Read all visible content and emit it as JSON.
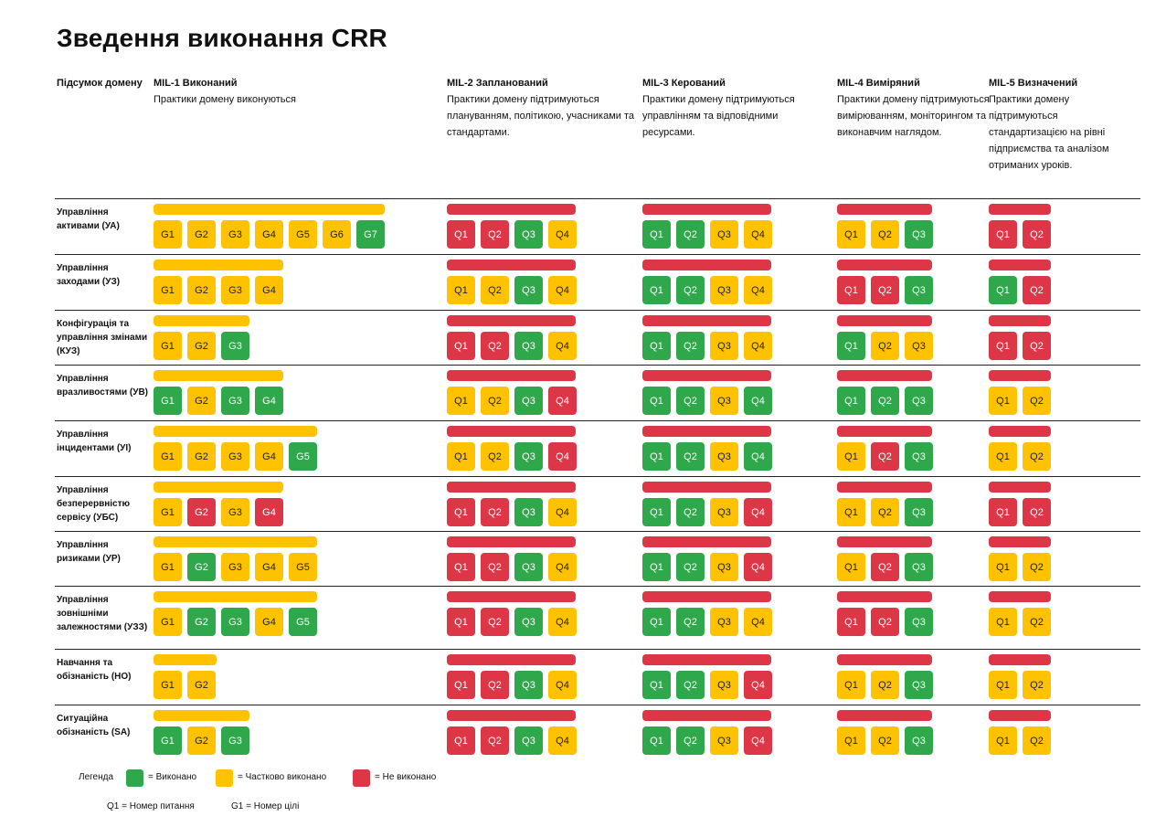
{
  "title": "Зведення виконання CRR",
  "summary_label": "Підсумок домену",
  "columns": [
    {
      "heading": "MIL-1 Виконаний",
      "desc": "Практики домену виконуються"
    },
    {
      "heading": "MIL-2 Запланований",
      "desc": "Практики домену підтримуються плануванням, політикою, учасниками та стандартами."
    },
    {
      "heading": "MIL-3 Керований",
      "desc": "Практики домену підтримуються управлінням та відповідними ресурсами."
    },
    {
      "heading": "MIL-4 Виміряний",
      "desc": "Практики домену підтримуються вимірюванням, моніторингом та виконавчим наглядом."
    },
    {
      "heading": "MIL-5 Визначений",
      "desc": "Практики домену підтримуються стандартизацією на рівні підприємства та аналізом отриманих уроків."
    }
  ],
  "colors": {
    "green": "#2ea84a",
    "yellow": "#ffc200",
    "red": "#dd3646"
  },
  "rows": [
    {
      "label": "Управління активами (УА)",
      "mil1_status": "yellow",
      "mil1": [
        [
          "G1",
          "y"
        ],
        [
          "G2",
          "y"
        ],
        [
          "G3",
          "y"
        ],
        [
          "G4",
          "y"
        ],
        [
          "G5",
          "y"
        ],
        [
          "G6",
          "y"
        ],
        [
          "G7",
          "g"
        ]
      ],
      "mil2_status": "red",
      "mil2": [
        [
          "Q1",
          "r"
        ],
        [
          "Q2",
          "r"
        ],
        [
          "Q3",
          "g"
        ],
        [
          "Q4",
          "y"
        ]
      ],
      "mil3_status": "red",
      "mil3": [
        [
          "Q1",
          "g"
        ],
        [
          "Q2",
          "g"
        ],
        [
          "Q3",
          "y"
        ],
        [
          "Q4",
          "y"
        ]
      ],
      "mil4_status": "red",
      "mil4": [
        [
          "Q1",
          "y"
        ],
        [
          "Q2",
          "y"
        ],
        [
          "Q3",
          "g"
        ]
      ],
      "mil5_status": "red",
      "mil5": [
        [
          "Q1",
          "r"
        ],
        [
          "Q2",
          "r"
        ]
      ]
    },
    {
      "label": "Управління заходами (УЗ)",
      "mil1_status": "yellow",
      "mil1": [
        [
          "G1",
          "y"
        ],
        [
          "G2",
          "y"
        ],
        [
          "G3",
          "y"
        ],
        [
          "G4",
          "y"
        ]
      ],
      "mil2_status": "red",
      "mil2": [
        [
          "Q1",
          "y"
        ],
        [
          "Q2",
          "y"
        ],
        [
          "Q3",
          "g"
        ],
        [
          "Q4",
          "y"
        ]
      ],
      "mil3_status": "red",
      "mil3": [
        [
          "Q1",
          "g"
        ],
        [
          "Q2",
          "g"
        ],
        [
          "Q3",
          "y"
        ],
        [
          "Q4",
          "y"
        ]
      ],
      "mil4_status": "red",
      "mil4": [
        [
          "Q1",
          "r"
        ],
        [
          "Q2",
          "r"
        ],
        [
          "Q3",
          "g"
        ]
      ],
      "mil5_status": "red",
      "mil5": [
        [
          "Q1",
          "g"
        ],
        [
          "Q2",
          "r"
        ]
      ]
    },
    {
      "label": "Конфігурація та управління змінами (КУЗ)",
      "mil1_status": "yellow",
      "mil1": [
        [
          "G1",
          "y"
        ],
        [
          "G2",
          "y"
        ],
        [
          "G3",
          "g"
        ]
      ],
      "mil2_status": "red",
      "mil2": [
        [
          "Q1",
          "r"
        ],
        [
          "Q2",
          "r"
        ],
        [
          "Q3",
          "g"
        ],
        [
          "Q4",
          "y"
        ]
      ],
      "mil3_status": "red",
      "mil3": [
        [
          "Q1",
          "g"
        ],
        [
          "Q2",
          "g"
        ],
        [
          "Q3",
          "y"
        ],
        [
          "Q4",
          "y"
        ]
      ],
      "mil4_status": "red",
      "mil4": [
        [
          "Q1",
          "g"
        ],
        [
          "Q2",
          "y"
        ],
        [
          "Q3",
          "y"
        ]
      ],
      "mil5_status": "red",
      "mil5": [
        [
          "Q1",
          "r"
        ],
        [
          "Q2",
          "r"
        ]
      ]
    },
    {
      "label": "Управління вразливостями (УВ)",
      "mil1_status": "yellow",
      "mil1": [
        [
          "G1",
          "g"
        ],
        [
          "G2",
          "y"
        ],
        [
          "G3",
          "g"
        ],
        [
          "G4",
          "g"
        ]
      ],
      "mil2_status": "red",
      "mil2": [
        [
          "Q1",
          "y"
        ],
        [
          "Q2",
          "y"
        ],
        [
          "Q3",
          "g"
        ],
        [
          "Q4",
          "r"
        ]
      ],
      "mil3_status": "red",
      "mil3": [
        [
          "Q1",
          "g"
        ],
        [
          "Q2",
          "g"
        ],
        [
          "Q3",
          "y"
        ],
        [
          "Q4",
          "g"
        ]
      ],
      "mil4_status": "red",
      "mil4": [
        [
          "Q1",
          "g"
        ],
        [
          "Q2",
          "g"
        ],
        [
          "Q3",
          "g"
        ]
      ],
      "mil5_status": "red",
      "mil5": [
        [
          "Q1",
          "y"
        ],
        [
          "Q2",
          "y"
        ]
      ]
    },
    {
      "label": "Управління інцидентами (УІ)",
      "mil1_status": "yellow",
      "mil1": [
        [
          "G1",
          "y"
        ],
        [
          "G2",
          "y"
        ],
        [
          "G3",
          "y"
        ],
        [
          "G4",
          "y"
        ],
        [
          "G5",
          "g"
        ]
      ],
      "mil2_status": "red",
      "mil2": [
        [
          "Q1",
          "y"
        ],
        [
          "Q2",
          "y"
        ],
        [
          "Q3",
          "g"
        ],
        [
          "Q4",
          "r"
        ]
      ],
      "mil3_status": "red",
      "mil3": [
        [
          "Q1",
          "g"
        ],
        [
          "Q2",
          "g"
        ],
        [
          "Q3",
          "y"
        ],
        [
          "Q4",
          "g"
        ]
      ],
      "mil4_status": "red",
      "mil4": [
        [
          "Q1",
          "y"
        ],
        [
          "Q2",
          "r"
        ],
        [
          "Q3",
          "g"
        ]
      ],
      "mil5_status": "red",
      "mil5": [
        [
          "Q1",
          "y"
        ],
        [
          "Q2",
          "y"
        ]
      ]
    },
    {
      "label": "Управління безперервністю сервісу (УБС)",
      "mil1_status": "yellow",
      "mil1": [
        [
          "G1",
          "y"
        ],
        [
          "G2",
          "r"
        ],
        [
          "G3",
          "y"
        ],
        [
          "G4",
          "r"
        ]
      ],
      "mil2_status": "red",
      "mil2": [
        [
          "Q1",
          "r"
        ],
        [
          "Q2",
          "r"
        ],
        [
          "Q3",
          "g"
        ],
        [
          "Q4",
          "y"
        ]
      ],
      "mil3_status": "red",
      "mil3": [
        [
          "Q1",
          "g"
        ],
        [
          "Q2",
          "g"
        ],
        [
          "Q3",
          "y"
        ],
        [
          "Q4",
          "r"
        ]
      ],
      "mil4_status": "red",
      "mil4": [
        [
          "Q1",
          "y"
        ],
        [
          "Q2",
          "y"
        ],
        [
          "Q3",
          "g"
        ]
      ],
      "mil5_status": "red",
      "mil5": [
        [
          "Q1",
          "r"
        ],
        [
          "Q2",
          "r"
        ]
      ]
    },
    {
      "label": "Управління ризиками (УР)",
      "mil1_status": "yellow",
      "mil1": [
        [
          "G1",
          "y"
        ],
        [
          "G2",
          "g"
        ],
        [
          "G3",
          "y"
        ],
        [
          "G4",
          "y"
        ],
        [
          "G5",
          "y"
        ]
      ],
      "mil2_status": "red",
      "mil2": [
        [
          "Q1",
          "r"
        ],
        [
          "Q2",
          "r"
        ],
        [
          "Q3",
          "g"
        ],
        [
          "Q4",
          "y"
        ]
      ],
      "mil3_status": "red",
      "mil3": [
        [
          "Q1",
          "g"
        ],
        [
          "Q2",
          "g"
        ],
        [
          "Q3",
          "y"
        ],
        [
          "Q4",
          "r"
        ]
      ],
      "mil4_status": "red",
      "mil4": [
        [
          "Q1",
          "y"
        ],
        [
          "Q2",
          "r"
        ],
        [
          "Q3",
          "g"
        ]
      ],
      "mil5_status": "red",
      "mil5": [
        [
          "Q1",
          "y"
        ],
        [
          "Q2",
          "y"
        ]
      ]
    },
    {
      "label": "Управління зовнішніми залежностями (УЗЗ)",
      "mil1_status": "yellow",
      "mil1": [
        [
          "G1",
          "y"
        ],
        [
          "G2",
          "g"
        ],
        [
          "G3",
          "g"
        ],
        [
          "G4",
          "y"
        ],
        [
          "G5",
          "g"
        ]
      ],
      "mil2_status": "red",
      "mil2": [
        [
          "Q1",
          "r"
        ],
        [
          "Q2",
          "r"
        ],
        [
          "Q3",
          "g"
        ],
        [
          "Q4",
          "y"
        ]
      ],
      "mil3_status": "red",
      "mil3": [
        [
          "Q1",
          "g"
        ],
        [
          "Q2",
          "g"
        ],
        [
          "Q3",
          "y"
        ],
        [
          "Q4",
          "y"
        ]
      ],
      "mil4_status": "red",
      "mil4": [
        [
          "Q1",
          "r"
        ],
        [
          "Q2",
          "r"
        ],
        [
          "Q3",
          "g"
        ]
      ],
      "mil5_status": "red",
      "mil5": [
        [
          "Q1",
          "y"
        ],
        [
          "Q2",
          "y"
        ]
      ]
    },
    {
      "label": "Навчання та обізнаність (НО)",
      "mil1_status": "yellow",
      "mil1": [
        [
          "G1",
          "y"
        ],
        [
          "G2",
          "y"
        ]
      ],
      "mil2_status": "red",
      "mil2": [
        [
          "Q1",
          "r"
        ],
        [
          "Q2",
          "r"
        ],
        [
          "Q3",
          "g"
        ],
        [
          "Q4",
          "y"
        ]
      ],
      "mil3_status": "red",
      "mil3": [
        [
          "Q1",
          "g"
        ],
        [
          "Q2",
          "g"
        ],
        [
          "Q3",
          "y"
        ],
        [
          "Q4",
          "r"
        ]
      ],
      "mil4_status": "red",
      "mil4": [
        [
          "Q1",
          "y"
        ],
        [
          "Q2",
          "y"
        ],
        [
          "Q3",
          "g"
        ]
      ],
      "mil5_status": "red",
      "mil5": [
        [
          "Q1",
          "y"
        ],
        [
          "Q2",
          "y"
        ]
      ]
    },
    {
      "label": "Ситуаційна обізнаність (SA)",
      "mil1_status": "yellow",
      "mil1": [
        [
          "G1",
          "g"
        ],
        [
          "G2",
          "y"
        ],
        [
          "G3",
          "g"
        ]
      ],
      "mil2_status": "red",
      "mil2": [
        [
          "Q1",
          "r"
        ],
        [
          "Q2",
          "r"
        ],
        [
          "Q3",
          "g"
        ],
        [
          "Q4",
          "y"
        ]
      ],
      "mil3_status": "red",
      "mil3": [
        [
          "Q1",
          "g"
        ],
        [
          "Q2",
          "g"
        ],
        [
          "Q3",
          "y"
        ],
        [
          "Q4",
          "r"
        ]
      ],
      "mil4_status": "red",
      "mil4": [
        [
          "Q1",
          "y"
        ],
        [
          "Q2",
          "y"
        ],
        [
          "Q3",
          "g"
        ]
      ],
      "mil5_status": "red",
      "mil5": [
        [
          "Q1",
          "y"
        ],
        [
          "Q2",
          "y"
        ]
      ]
    }
  ],
  "legend": {
    "title": "Легенда",
    "items": [
      {
        "color": "green",
        "label": "= Виконано"
      },
      {
        "color": "yellow",
        "label": "= Частково виконано"
      },
      {
        "color": "red",
        "label": "= Не виконано"
      }
    ],
    "note_q": "Q1 = Номер питання",
    "note_g": "G1 = Номер цілі"
  }
}
